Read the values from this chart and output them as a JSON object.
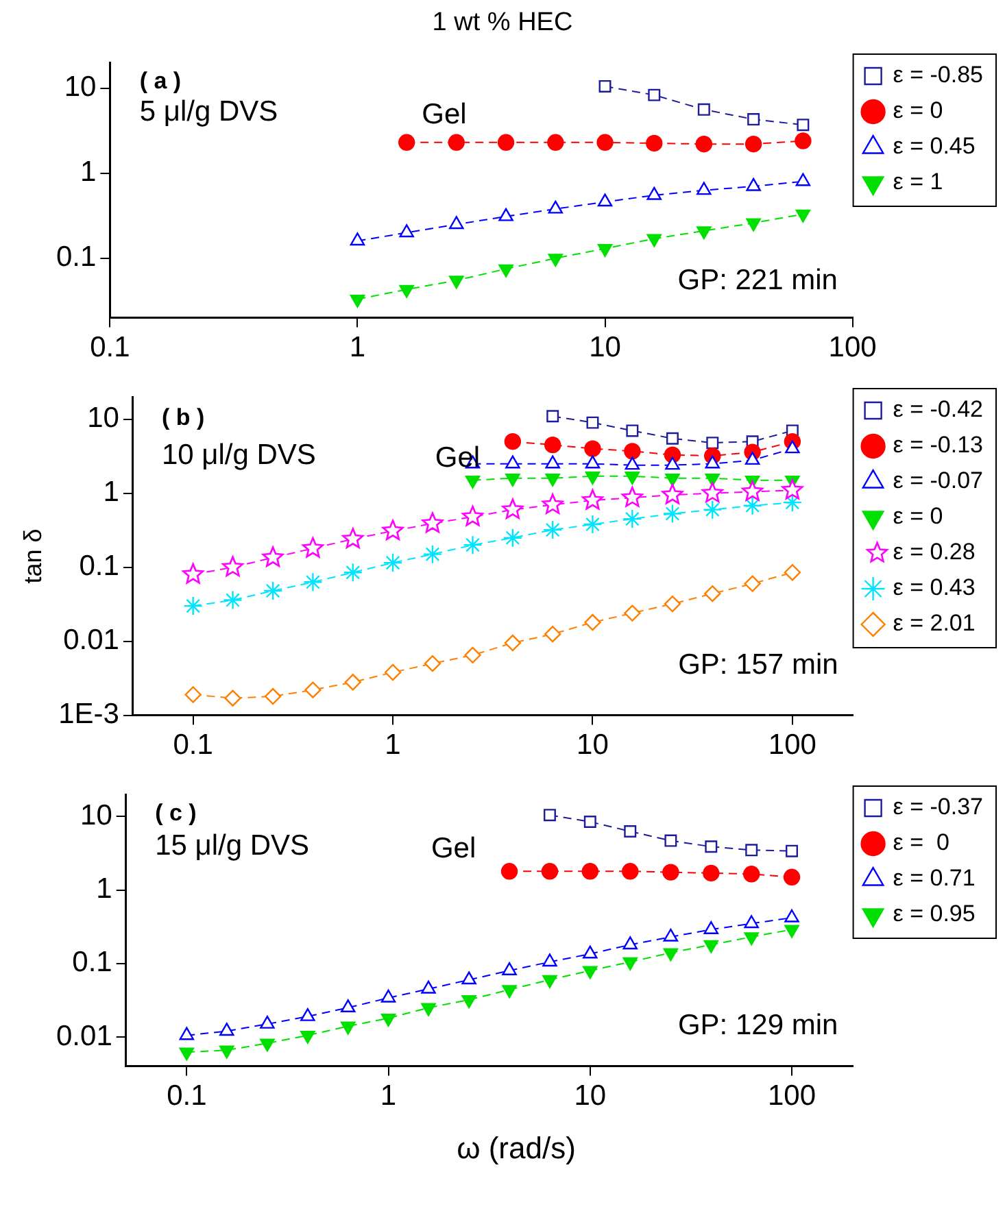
{
  "chart_data": [
    {
      "type": "line",
      "title": "1 wt % HEC",
      "annotations": [
        "( a )",
        "5 μl/g DVS",
        "Gel",
        "GP: 221 min"
      ],
      "log": "xy",
      "xlim": [
        0.1,
        100
      ],
      "xticks": [
        0.1,
        1,
        10,
        100
      ],
      "ylim": [
        0.02,
        20
      ],
      "yticks": [
        0.1,
        1,
        10
      ],
      "legend": "right",
      "line_style": "dashed",
      "grid": false,
      "series": [
        {
          "name": "ε = -0.85",
          "color": "#1c1c9c",
          "marker": "square",
          "x": [
            10,
            15.8,
            25.1,
            39.8,
            63.1
          ],
          "values": [
            10.5,
            8.3,
            5.6,
            4.3,
            3.7
          ]
        },
        {
          "name": "ε = 0",
          "color": "#ff0000",
          "marker": "circle",
          "x": [
            1.58,
            2.51,
            3.98,
            6.31,
            10,
            15.8,
            25.1,
            39.8,
            63.1
          ],
          "values": [
            2.3,
            2.3,
            2.3,
            2.3,
            2.3,
            2.25,
            2.2,
            2.2,
            2.4
          ]
        },
        {
          "name": "ε = 0.45",
          "color": "#0000ff",
          "marker": "triangle",
          "x": [
            1,
            1.58,
            2.51,
            3.98,
            6.31,
            10,
            15.8,
            25.1,
            39.8,
            63.1
          ],
          "values": [
            0.16,
            0.2,
            0.25,
            0.31,
            0.38,
            0.46,
            0.55,
            0.63,
            0.7,
            0.8
          ]
        },
        {
          "name": "ε = 1",
          "color": "#00e000",
          "marker": "triangle-down",
          "x": [
            1,
            1.58,
            2.51,
            3.98,
            6.31,
            10,
            15.8,
            25.1,
            39.8,
            63.1
          ],
          "values": [
            0.033,
            0.043,
            0.055,
            0.075,
            0.1,
            0.13,
            0.17,
            0.21,
            0.26,
            0.33
          ]
        }
      ]
    },
    {
      "type": "line",
      "ylabel": "tan δ",
      "annotations": [
        "( b )",
        "10 μl/g DVS",
        "Gel",
        "GP: 157 min"
      ],
      "log": "xy",
      "xlim": [
        0.05,
        200
      ],
      "xticks": [
        0.1,
        1,
        10,
        100
      ],
      "ylim": [
        0.001,
        20
      ],
      "yticks": [
        {
          "value": 0.001,
          "label": "1E-3"
        },
        0.01,
        0.1,
        1,
        10
      ],
      "legend": "right",
      "line_style": "dashed",
      "grid": false,
      "series": [
        {
          "name": "ε = -0.42",
          "color": "#1c1c9c",
          "marker": "square",
          "x": [
            6.31,
            10,
            15.8,
            25.1,
            39.8,
            63.1,
            100
          ],
          "values": [
            11,
            9,
            7,
            5.5,
            4.8,
            5,
            7
          ]
        },
        {
          "name": "ε = -0.13",
          "color": "#ff0000",
          "marker": "circle",
          "x": [
            3.98,
            6.31,
            10,
            15.8,
            25.1,
            39.8,
            63.1,
            100
          ],
          "values": [
            5,
            4.5,
            4,
            3.7,
            3.3,
            3.2,
            3.6,
            5
          ]
        },
        {
          "name": "ε = -0.07",
          "color": "#0000ff",
          "marker": "triangle",
          "x": [
            2.51,
            3.98,
            6.31,
            10,
            15.8,
            25.1,
            39.8,
            63.1,
            100
          ],
          "values": [
            2.5,
            2.5,
            2.5,
            2.5,
            2.4,
            2.4,
            2.5,
            2.8,
            4
          ]
        },
        {
          "name": "ε = 0",
          "color": "#00e000",
          "marker": "triangle-down",
          "x": [
            2.51,
            3.98,
            6.31,
            10,
            15.8,
            25.1,
            39.8,
            63.1,
            100
          ],
          "values": [
            1.5,
            1.6,
            1.6,
            1.7,
            1.7,
            1.6,
            1.6,
            1.5,
            1.5
          ]
        },
        {
          "name": "ε = 0.28",
          "color": "#ff00ff",
          "marker": "star",
          "x": [
            0.1,
            0.158,
            0.251,
            0.398,
            0.631,
            1,
            1.58,
            2.51,
            3.98,
            6.31,
            10,
            15.8,
            25.1,
            39.8,
            63.1,
            100
          ],
          "values": [
            0.08,
            0.1,
            0.135,
            0.18,
            0.24,
            0.31,
            0.39,
            0.48,
            0.6,
            0.7,
            0.8,
            0.87,
            0.95,
            1,
            1.05,
            1.1
          ]
        },
        {
          "name": "ε = 0.43",
          "color": "#00e5ff",
          "marker": "cross",
          "x": [
            0.1,
            0.158,
            0.251,
            0.398,
            0.631,
            1,
            1.58,
            2.51,
            3.98,
            6.31,
            10,
            15.8,
            25.1,
            39.8,
            63.1,
            100
          ],
          "values": [
            0.03,
            0.036,
            0.048,
            0.063,
            0.085,
            0.115,
            0.15,
            0.2,
            0.25,
            0.32,
            0.38,
            0.45,
            0.53,
            0.6,
            0.68,
            0.75
          ]
        },
        {
          "name": "ε = 2.01",
          "color": "#ff8000",
          "marker": "diamond",
          "x": [
            0.1,
            0.158,
            0.251,
            0.398,
            0.631,
            1,
            1.58,
            2.51,
            3.98,
            6.31,
            10,
            15.8,
            25.1,
            39.8,
            63.1,
            100
          ],
          "values": [
            0.0019,
            0.0017,
            0.0018,
            0.0022,
            0.0028,
            0.0038,
            0.005,
            0.0065,
            0.0095,
            0.0125,
            0.018,
            0.024,
            0.032,
            0.044,
            0.06,
            0.085
          ]
        }
      ]
    },
    {
      "type": "line",
      "xlabel": "ω (rad/s)",
      "annotations": [
        "( c )",
        "15 μl/g DVS",
        "Gel",
        "GP: 129 min"
      ],
      "log": "xy",
      "xlim": [
        0.05,
        200
      ],
      "xticks": [
        0.1,
        1,
        10,
        100
      ],
      "ylim": [
        0.004,
        20
      ],
      "yticks": [
        0.01,
        0.1,
        1,
        10
      ],
      "legend": "right",
      "line_style": "dashed",
      "grid": false,
      "series": [
        {
          "name": "ε = -0.37",
          "color": "#1c1c9c",
          "marker": "square",
          "x": [
            6.31,
            10,
            15.8,
            25.1,
            39.8,
            63.1,
            100
          ],
          "values": [
            10.5,
            8.5,
            6.3,
            4.7,
            3.9,
            3.5,
            3.4
          ]
        },
        {
          "name": "ε =  0",
          "color": "#ff0000",
          "marker": "circle",
          "x": [
            3.98,
            6.31,
            10,
            15.8,
            25.1,
            39.8,
            63.1,
            100
          ],
          "values": [
            1.8,
            1.8,
            1.8,
            1.8,
            1.75,
            1.7,
            1.65,
            1.5
          ]
        },
        {
          "name": "ε = 0.71",
          "color": "#0000ff",
          "marker": "triangle",
          "x": [
            0.1,
            0.158,
            0.251,
            0.398,
            0.631,
            1,
            1.58,
            2.51,
            3.98,
            6.31,
            10,
            15.8,
            25.1,
            39.8,
            63.1,
            100
          ],
          "values": [
            0.0105,
            0.012,
            0.015,
            0.019,
            0.025,
            0.034,
            0.045,
            0.06,
            0.08,
            0.105,
            0.135,
            0.18,
            0.23,
            0.29,
            0.35,
            0.42
          ]
        },
        {
          "name": "ε = 0.95",
          "color": "#00e000",
          "marker": "triangle-down",
          "x": [
            0.1,
            0.158,
            0.251,
            0.398,
            0.631,
            1,
            1.58,
            2.51,
            3.98,
            6.31,
            10,
            15.8,
            25.1,
            39.8,
            63.1,
            100
          ],
          "values": [
            0.0062,
            0.0066,
            0.0082,
            0.0105,
            0.014,
            0.018,
            0.025,
            0.032,
            0.044,
            0.06,
            0.08,
            0.105,
            0.14,
            0.18,
            0.23,
            0.29
          ]
        }
      ]
    }
  ]
}
